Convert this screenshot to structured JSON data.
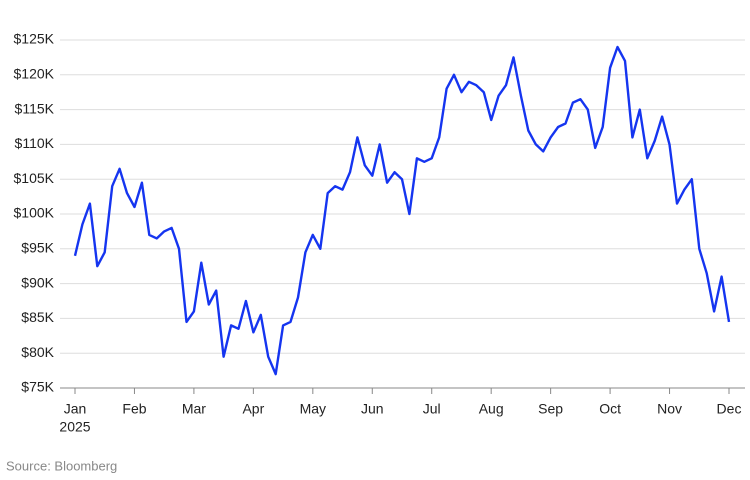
{
  "chart_data": {
    "type": "line",
    "categories": [
      "Jan",
      null,
      null,
      null,
      null,
      null,
      null,
      null,
      "Feb",
      null,
      null,
      null,
      null,
      null,
      null,
      null,
      "Mar",
      null,
      null,
      null,
      null,
      null,
      null,
      null,
      "Apr",
      null,
      null,
      null,
      null,
      null,
      null,
      null,
      "May",
      null,
      null,
      null,
      null,
      null,
      null,
      null,
      "Jun",
      null,
      null,
      null,
      null,
      null,
      null,
      null,
      "Jul",
      null,
      null,
      null,
      null,
      null,
      null,
      null,
      "Aug",
      null,
      null,
      null,
      null,
      null,
      null,
      null,
      "Sep",
      null,
      null,
      null,
      null,
      null,
      null,
      null,
      "Oct",
      null,
      null,
      null,
      null,
      null,
      null,
      null,
      "Nov",
      null,
      null,
      null,
      null,
      null,
      null,
      null,
      "Dec"
    ],
    "x_sublabel": "2025",
    "series": [
      {
        "color": "#1535f0",
        "values": [
          94,
          98.5,
          101.5,
          92.5,
          94.5,
          104,
          106.5,
          103,
          101,
          104.5,
          97,
          96.5,
          97.5,
          98,
          95,
          84.5,
          86,
          93,
          87,
          89,
          79.5,
          84,
          83.5,
          87.5,
          83,
          85.5,
          79.5,
          77,
          84,
          84.5,
          88,
          94.5,
          97,
          95,
          103,
          104,
          103.5,
          106,
          111,
          107,
          105.5,
          110,
          104.5,
          106,
          105,
          100,
          108,
          107.5,
          108,
          111,
          118,
          120,
          117.5,
          119,
          118.5,
          117.5,
          113.5,
          117,
          118.5,
          122.5,
          117,
          112,
          110,
          109,
          111,
          112.5,
          113,
          116,
          116.5,
          115,
          109.5,
          112.5,
          121,
          124,
          122,
          111,
          115,
          108,
          110.5,
          114,
          110,
          101.5,
          103.5,
          105,
          95,
          91.5,
          86,
          91,
          84.5
        ]
      }
    ],
    "ylim": [
      75,
      125
    ],
    "yticks": [
      {
        "value": 75,
        "label": "$75K"
      },
      {
        "value": 80,
        "label": "$80K"
      },
      {
        "value": 85,
        "label": "$85K"
      },
      {
        "value": 90,
        "label": "$90K"
      },
      {
        "value": 95,
        "label": "$95K"
      },
      {
        "value": 100,
        "label": "$100K"
      },
      {
        "value": 105,
        "label": "$105K"
      },
      {
        "value": 110,
        "label": "$110K"
      },
      {
        "value": 115,
        "label": "$115K"
      },
      {
        "value": 120,
        "label": "$120K"
      },
      {
        "value": 125,
        "label": "$125K"
      }
    ],
    "grid": true,
    "source": "Source: Bloomberg"
  }
}
